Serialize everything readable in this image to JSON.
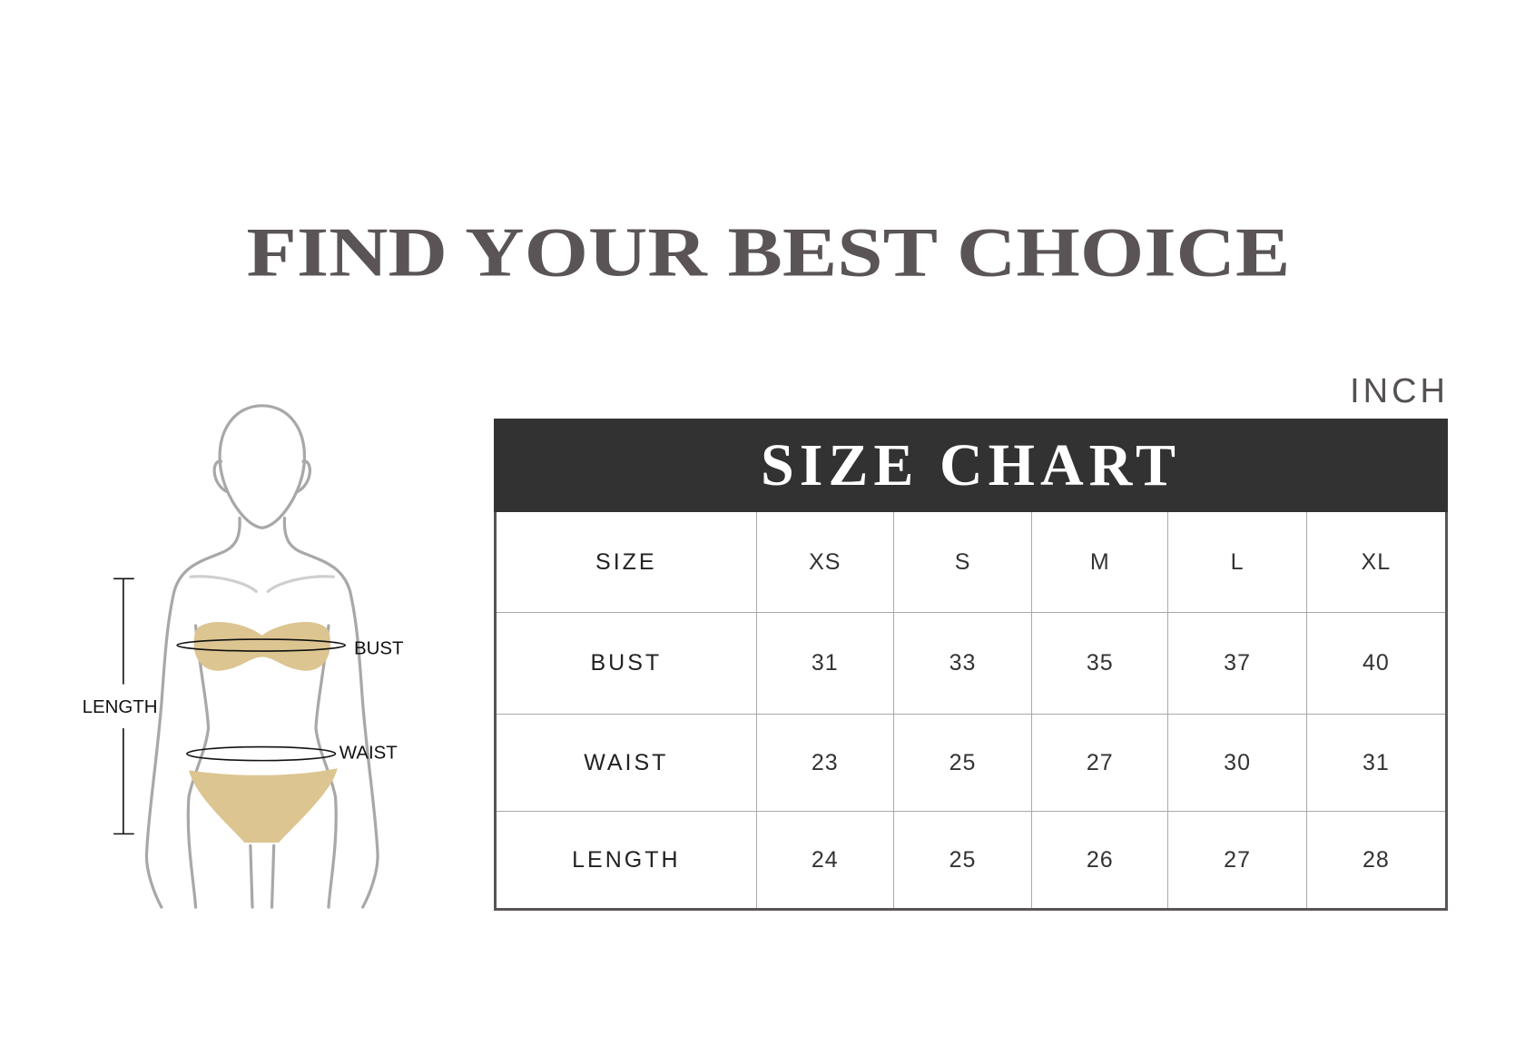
{
  "title": "FIND YOUR BEST CHOICE",
  "unit": "INCH",
  "figure": {
    "labels": {
      "bust": "BUST",
      "waist": "WAIST",
      "length": "LENGTH"
    },
    "colors": {
      "garment": "#dcc591",
      "outline": "#a8a8a8",
      "lines": "#111111"
    }
  },
  "chart_data": {
    "type": "table",
    "title": "SIZE CHART",
    "header": [
      "SIZE",
      "XS",
      "S",
      "M",
      "L",
      "XL"
    ],
    "rows": [
      [
        "BUST",
        "31",
        "33",
        "35",
        "37",
        "40"
      ],
      [
        "WAIST",
        "23",
        "25",
        "27",
        "30",
        "31"
      ],
      [
        "LENGTH",
        "24",
        "25",
        "26",
        "27",
        "28"
      ]
    ]
  },
  "colors": {
    "title": "#5a5456",
    "header_bg": "#333232",
    "border": "#5a5456"
  }
}
